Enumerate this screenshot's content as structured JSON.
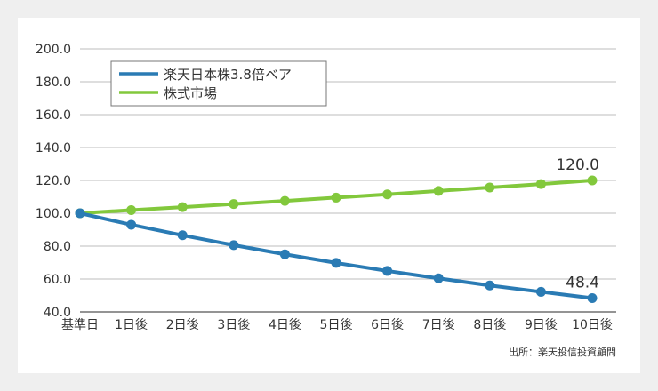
{
  "chart_data": {
    "type": "line",
    "categories": [
      "基準日",
      "1日後",
      "2日後",
      "3日後",
      "4日後",
      "5日後",
      "6日後",
      "7日後",
      "8日後",
      "9日後",
      "10日後"
    ],
    "ylim": [
      40,
      200
    ],
    "yticks": [
      "200.0",
      "180.0",
      "160.0",
      "140.0",
      "120.0",
      "100.0",
      "80.0",
      "60.0",
      "40.0"
    ],
    "grid": true,
    "legend_position": "top-left",
    "series": [
      {
        "name": "楽天日本株3.8倍ベア",
        "color": "#2a7bb4",
        "values": [
          100.0,
          93.0,
          86.6,
          80.6,
          75.0,
          69.8,
          64.9,
          60.4,
          56.1,
          52.2,
          48.4
        ],
        "end_label": "48.4"
      },
      {
        "name": "株式市場",
        "color": "#82c83c",
        "values": [
          100.0,
          101.9,
          103.7,
          105.6,
          107.5,
          109.5,
          111.5,
          113.6,
          115.7,
          117.8,
          120.0
        ],
        "end_label": "120.0"
      }
    ],
    "source_note": "出所：楽天投信投資顧問"
  }
}
